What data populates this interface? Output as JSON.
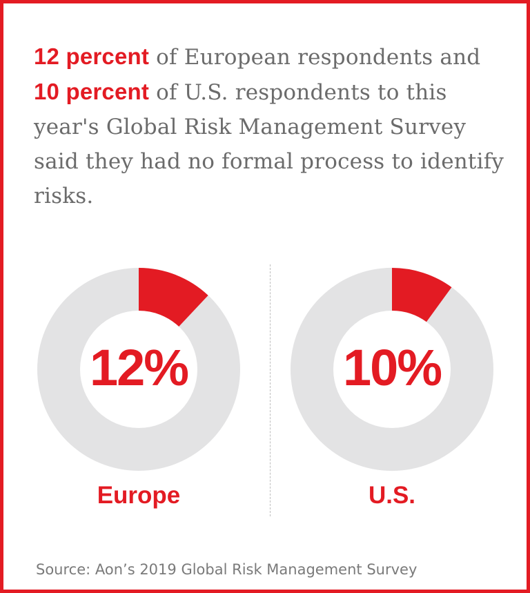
{
  "headline": {
    "europe_pct_text": "12 percent",
    "part1": " of European respondents and ",
    "us_pct_text": "10 percent",
    "part2": " of U.S. respondents to this year's Global Risk Management Survey said they had no formal process to identify risks."
  },
  "colors": {
    "accent": "#e31b23",
    "track": "#e3e3e4",
    "body_text": "#6b6b6b",
    "source_text": "#7a7a7a"
  },
  "chart_data": [
    {
      "type": "pie",
      "name": "Europe",
      "value": 12,
      "max": 100,
      "center_label": "12%",
      "label": "Europe"
    },
    {
      "type": "pie",
      "name": "U.S.",
      "value": 10,
      "max": 100,
      "center_label": "10%",
      "label": "U.S."
    }
  ],
  "source": "Source: Aon’s 2019 Global Risk Management Survey"
}
